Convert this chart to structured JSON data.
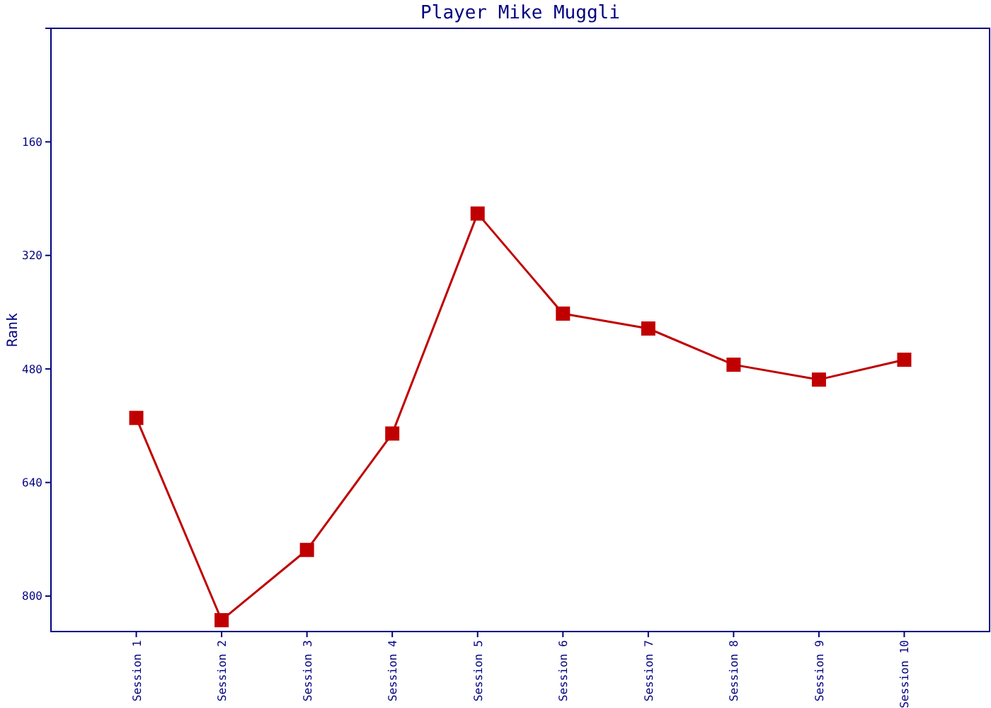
{
  "chart_data": {
    "type": "line",
    "title": "Player Mike Muggli",
    "ylabel": "Rank",
    "categories": [
      "Session 1",
      "Session 2",
      "Session 3",
      "Session 4",
      "Session 5",
      "Session 6",
      "Session 7",
      "Session 8",
      "Session 9",
      "Session 10"
    ],
    "series": [
      {
        "color": "#c00000",
        "values": [
          549,
          834,
          735,
          571,
          261,
          402,
          423,
          474,
          495,
          467
        ]
      }
    ],
    "ylim": [
      850,
      0
    ],
    "yticks": [
      {
        "value": 0,
        "label": null
      },
      160,
      320,
      480,
      640,
      800
    ],
    "marker": "square",
    "line_style": "solid",
    "grid": false
  }
}
